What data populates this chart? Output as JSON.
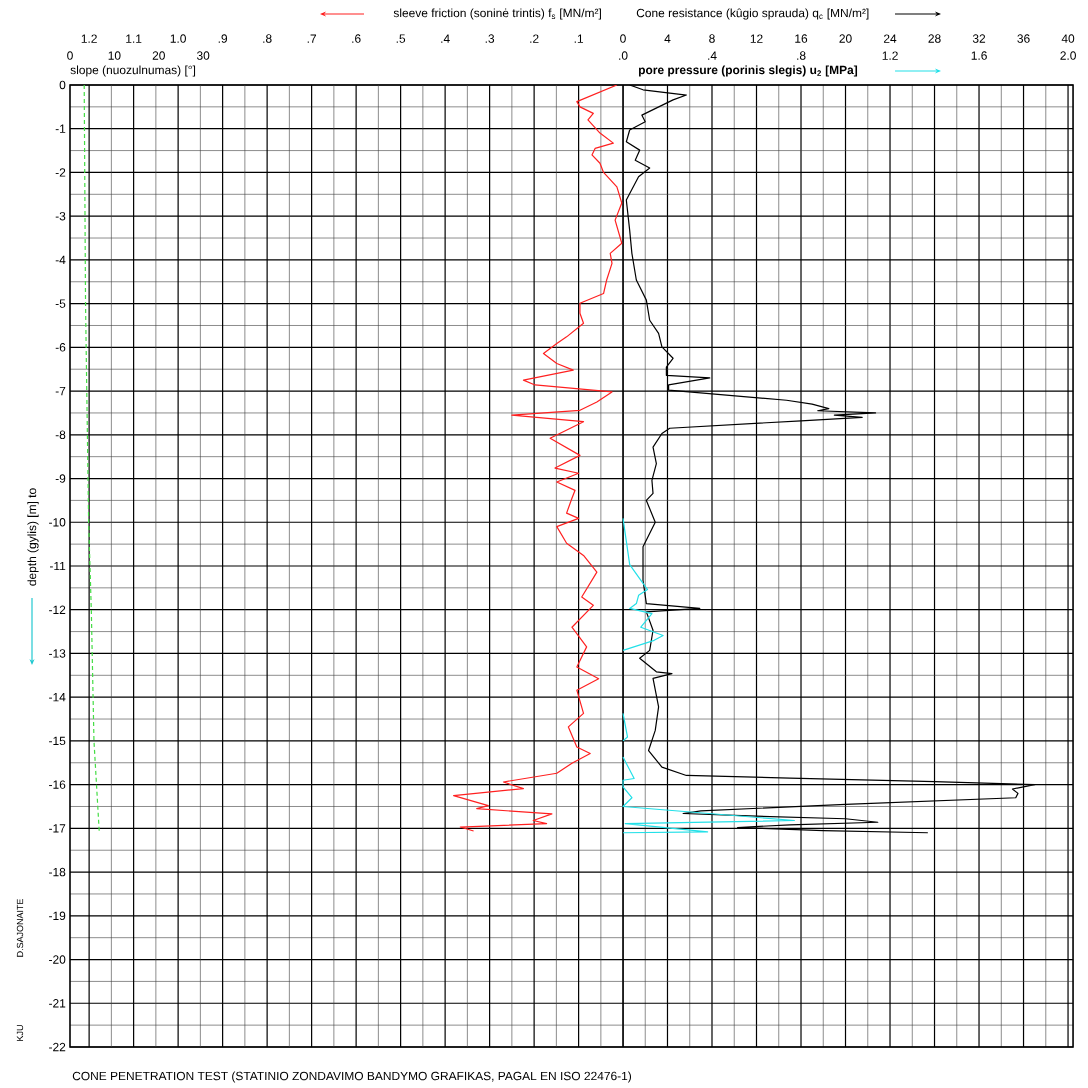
{
  "chart_data": [
    {
      "type": "line",
      "xlabel": "Cone resistance (kûgio sprauda) q$_{c}$ [MN/m²]",
      "x2label": "sleeve friction (soninė trintis) f$_{s}$ [MN/m²]",
      "ylabel": "depth (gylis) [m] to",
      "annotations": [
        "CONE PENETRATION TEST (STATINIO ZONDAVIMO BANDYMO GRAFIKAS, PAGAL EN ISO 22476-1)",
        "D.SAJONAITE",
        "KJU"
      ],
      "xlim": [
        -49.7,
        40.45
      ],
      "xticks": [
        0,
        4,
        8,
        12,
        16,
        20,
        24,
        28,
        32,
        36,
        40
      ],
      "x2lim": [
        1.243,
        -1.011
      ],
      "x2ticks": [
        1.2,
        1.1,
        {
          "value": 1.0,
          "label": "1.0"
        },
        {
          "value": 0.9,
          "label": ".9"
        },
        {
          "value": 0.8,
          "label": ".8"
        },
        {
          "value": 0.7,
          "label": ".7"
        },
        {
          "value": 0.6,
          "label": ".6"
        },
        {
          "value": 0.5,
          "label": ".5"
        },
        {
          "value": 0.4,
          "label": ".4"
        },
        {
          "value": 0.3,
          "label": ".3"
        },
        {
          "value": 0.2,
          "label": ".2"
        },
        {
          "value": 0.1,
          "label": ".1"
        },
        {
          "value": 0,
          "label": null
        }
      ],
      "ylim": [
        -22,
        0
      ],
      "yticks": [
        0,
        -1,
        -2,
        -3,
        -4,
        -5,
        -6,
        -7,
        -8,
        -9,
        -10,
        -11,
        -12,
        -13,
        -14,
        -15,
        -16,
        -17,
        -18,
        -19,
        -20,
        -21,
        -22
      ],
      "grid": true,
      "marker": "none",
      "series": [
        {
          "axis": "x2",
          "color": "#ff2020",
          "line_style": "solid",
          "x": [
            0.014,
            0.104,
            0.097,
            0.067,
            0.079,
            0.052,
            0.022,
            0.063,
            0.07,
            0.052,
            0.044,
            0.014,
            0.003,
            0.018,
            0.003,
            0.029,
            0.025,
            0.037,
            0.044,
            0.097,
            0.097,
            0.089,
            0.127,
            0.149,
            0.179,
            0.149,
            0.112,
            0.224,
            0.198,
            0.025,
            0.059,
            0.097,
            0.25,
            0.089,
            0.164,
            0.097,
            0.153,
            0.1,
            0.149,
            0.108,
            0.115,
            0.127,
            0.1,
            0.149,
            0.127,
            0.089,
            0.059,
            0.093,
            0.067,
            0.115,
            0.082,
            0.104,
            0.055,
            0.104,
            0.089,
            0.123,
            0.104,
            0.074,
            0.115,
            0.149,
            0.269,
            0.224,
            0.381,
            0.303,
            0.329,
            0.16,
            0.202,
            0.172,
            0.366,
            0.336
          ],
          "values": [
            0,
            -0.38,
            -0.5,
            -0.65,
            -0.8,
            -1.1,
            -1.33,
            -1.45,
            -1.6,
            -1.79,
            -2.0,
            -2.33,
            -2.7,
            -3.09,
            -3.62,
            -3.85,
            -4.08,
            -4.46,
            -4.77,
            -4.99,
            -5.22,
            -5.45,
            -5.76,
            -5.91,
            -6.14,
            -6.37,
            -6.52,
            -6.75,
            -6.86,
            -7.02,
            -7.25,
            -7.44,
            -7.55,
            -7.7,
            -8.08,
            -8.47,
            -8.76,
            -8.88,
            -9.08,
            -9.27,
            -9.45,
            -9.79,
            -9.91,
            -10.1,
            -10.48,
            -10.76,
            -11.14,
            -11.71,
            -11.9,
            -12.4,
            -12.85,
            -13.31,
            -13.58,
            -13.84,
            -14.37,
            -14.68,
            -15.14,
            -15.29,
            -15.51,
            -15.74,
            -15.94,
            -16.09,
            -16.25,
            -16.48,
            -16.55,
            -16.67,
            -16.82,
            -16.89,
            -16.97,
            -17.06
          ]
        },
        {
          "color": "#000000",
          "line_style": "solid",
          "x": [
            0.6,
            1.8,
            5.7,
            4.5,
            1.7,
            2.0,
            0.6,
            0.3,
            1.5,
            1.1,
            2.4,
            1.4,
            0.3,
            0.6,
            0.8,
            1.2,
            2.1,
            2.4,
            3.2,
            3.5,
            4.5,
            3.9,
            3.9,
            7.8,
            4.1,
            4.1,
            14.7,
            17,
            18.5,
            17.5,
            22.7,
            19,
            21.5,
            16,
            4.2,
            3.5,
            2.7,
            3.0,
            2.6,
            2.7,
            2.1,
            2.9,
            1.8,
            1.8,
            2.1,
            6.9,
            2.1,
            2.7,
            2.4,
            1.5,
            3.0,
            4.4,
            2.7,
            3.2,
            2.9,
            2.3,
            3.5,
            5.7,
            15,
            28,
            37,
            35,
            35.5,
            35.3,
            20,
            7,
            5.4,
            12,
            20,
            22.9,
            15,
            10.3,
            18,
            27.4
          ],
          "values": [
            0,
            -0.11,
            -0.23,
            -0.34,
            -0.69,
            -0.84,
            -1.03,
            -1.3,
            -1.49,
            -1.72,
            -1.9,
            -2.1,
            -2.63,
            -3.32,
            -3.85,
            -4.46,
            -4.92,
            -5.38,
            -5.68,
            -5.99,
            -6.25,
            -6.45,
            -6.64,
            -6.7,
            -6.86,
            -6.98,
            -7.21,
            -7.3,
            -7.4,
            -7.45,
            -7.5,
            -7.55,
            -7.6,
            -7.68,
            -7.85,
            -7.97,
            -8.28,
            -8.66,
            -9.04,
            -9.34,
            -9.5,
            -10.0,
            -10.56,
            -11.33,
            -11.86,
            -11.97,
            -12.05,
            -12.47,
            -12.93,
            -13.11,
            -13.42,
            -13.46,
            -13.57,
            -14.22,
            -14.76,
            -15.22,
            -15.6,
            -15.79,
            -15.85,
            -15.93,
            -16.0,
            -16.1,
            -16.2,
            -16.3,
            -16.45,
            -16.6,
            -16.66,
            -16.72,
            -16.78,
            -16.86,
            -16.92,
            -16.98,
            -17.05,
            -17.1
          ]
        }
      ]
    },
    {
      "type": "line",
      "xlabel": "pore pressure (porinis slegis) u$_{2}$ [MPa]",
      "x2label": "slope (nuozulnumas) [°]",
      "xlim": [
        -2.485,
        2.022
      ],
      "xticks": [
        {
          "value": 0,
          "label": ".0"
        },
        {
          "value": 0.4,
          "label": ".4"
        },
        {
          "value": 0.8,
          "label": ".8"
        },
        1.2,
        1.6,
        {
          "value": 2.0,
          "label": "2.0"
        }
      ],
      "x2lim": [
        0,
        226
      ],
      "x2ticks": [
        0,
        10,
        20,
        30
      ],
      "ylim": [
        -22,
        0
      ],
      "tick_labels": "x",
      "marker": "none",
      "series": [
        {
          "color": "#22e0e8",
          "line_style": "solid",
          "x": [
            0,
            0.03,
            0.11,
            0.07,
            0.06,
            0.03,
            0.13,
            0.08,
            0.18,
            0.14,
            0,
            null,
            0,
            0.02,
            0,
            null,
            0,
            0.05,
            0,
            0,
            0.04,
            0,
            0.77,
            0.01,
            0.38,
            0
          ],
          "values": [
            -9.91,
            -10.97,
            -11.54,
            -11.67,
            -11.86,
            -11.97,
            -12.09,
            -12.4,
            -12.59,
            -12.7,
            -12.93,
            null,
            -14.37,
            -14.91,
            -15.0,
            null,
            -15.37,
            -15.86,
            -15.9,
            -16.05,
            -16.3,
            -16.5,
            -16.82,
            -16.89,
            -17.08,
            -17.1
          ]
        },
        {
          "axis": "x2",
          "color": "#44dd44",
          "line_style": "dashed",
          "x": [
            3.2,
            3.5,
            4.2,
            4.8,
            5.4,
            6.6
          ],
          "values": [
            0,
            -5,
            -10,
            -12,
            -15,
            -17.1
          ]
        }
      ]
    }
  ]
}
